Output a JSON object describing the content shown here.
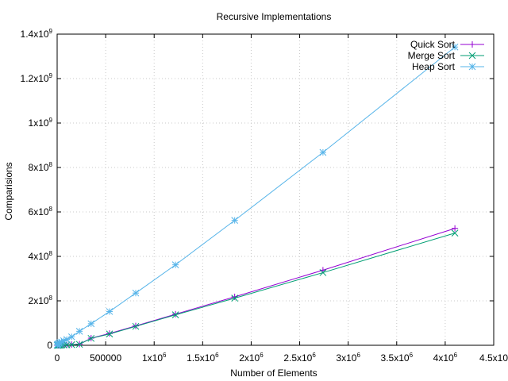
{
  "chart_data": {
    "type": "line",
    "title": "Recursive Implementations",
    "xlabel": "Number of Elements",
    "ylabel": "Comparisions",
    "xlim": [
      0,
      4500000
    ],
    "ylim": [
      0,
      1400000000
    ],
    "grid": true,
    "legend_position": "top-right",
    "x_ticks": [
      {
        "value": 0,
        "base": "0",
        "exp": ""
      },
      {
        "value": 500000,
        "base": "500000",
        "exp": ""
      },
      {
        "value": 1000000,
        "base": "1x10",
        "exp": "6"
      },
      {
        "value": 1500000,
        "base": "1.5x10",
        "exp": "6"
      },
      {
        "value": 2000000,
        "base": "2x10",
        "exp": "6"
      },
      {
        "value": 2500000,
        "base": "2.5x10",
        "exp": "6"
      },
      {
        "value": 3000000,
        "base": "3x10",
        "exp": "6"
      },
      {
        "value": 3500000,
        "base": "3.5x10",
        "exp": "6"
      },
      {
        "value": 4000000,
        "base": "4x10",
        "exp": "6"
      },
      {
        "value": 4500000,
        "base": "4.5x10",
        "exp": ""
      }
    ],
    "y_ticks": [
      {
        "value": 0,
        "base": "0",
        "exp": ""
      },
      {
        "value": 200000000,
        "base": "2x10",
        "exp": "8"
      },
      {
        "value": 400000000,
        "base": "4x10",
        "exp": "8"
      },
      {
        "value": 600000000,
        "base": "6x10",
        "exp": "8"
      },
      {
        "value": 800000000,
        "base": "8x10",
        "exp": "8"
      },
      {
        "value": 1000000000,
        "base": "1x10",
        "exp": "9"
      },
      {
        "value": 1200000000,
        "base": "1.2x10",
        "exp": "9"
      },
      {
        "value": 1400000000,
        "base": "1.4x10",
        "exp": "9"
      }
    ],
    "series": [
      {
        "name": "Quick Sort",
        "color": "#9400d3",
        "marker": "plus",
        "points": [
          [
            1000,
            11000
          ],
          [
            5000,
            65000
          ],
          [
            10000,
            145000
          ],
          [
            20000,
            320000
          ],
          [
            30000,
            510000
          ],
          [
            45000,
            810000
          ],
          [
            68000,
            1300000
          ],
          [
            100000,
            2000000
          ],
          [
            150000,
            3200000
          ],
          [
            230000,
            5200000
          ],
          [
            350000,
            32000000
          ],
          [
            540000,
            53000000
          ],
          [
            810000,
            87000000
          ],
          [
            1220000,
            140000000
          ],
          [
            1830000,
            218000000
          ],
          [
            2740000,
            338000000
          ],
          [
            4100000,
            526000000
          ]
        ]
      },
      {
        "name": "Merge Sort",
        "color": "#009e73",
        "marker": "cross",
        "points": [
          [
            1000,
            9000
          ],
          [
            5000,
            55000
          ],
          [
            10000,
            120000
          ],
          [
            20000,
            260000
          ],
          [
            30000,
            420000
          ],
          [
            45000,
            680000
          ],
          [
            68000,
            1100000
          ],
          [
            100000,
            1700000
          ],
          [
            150000,
            2700000
          ],
          [
            230000,
            4300000
          ],
          [
            350000,
            31000000
          ],
          [
            540000,
            51000000
          ],
          [
            810000,
            85000000
          ],
          [
            1220000,
            137000000
          ],
          [
            1830000,
            212000000
          ],
          [
            2740000,
            327000000
          ],
          [
            4100000,
            505000000
          ]
        ]
      },
      {
        "name": "Heap Sort",
        "color": "#56b4e9",
        "marker": "star",
        "points": [
          [
            1000,
            1000000
          ],
          [
            5000,
            4000000
          ],
          [
            10000,
            6000000
          ],
          [
            20000,
            9000000
          ],
          [
            30000,
            12000000
          ],
          [
            45000,
            15000000
          ],
          [
            68000,
            20000000
          ],
          [
            100000,
            26000000
          ],
          [
            150000,
            38000000
          ],
          [
            230000,
            63000000
          ],
          [
            350000,
            97000000
          ],
          [
            540000,
            152000000
          ],
          [
            810000,
            235000000
          ],
          [
            1220000,
            362000000
          ],
          [
            1830000,
            562000000
          ],
          [
            2740000,
            868000000
          ],
          [
            4100000,
            1342000000
          ]
        ]
      }
    ]
  }
}
